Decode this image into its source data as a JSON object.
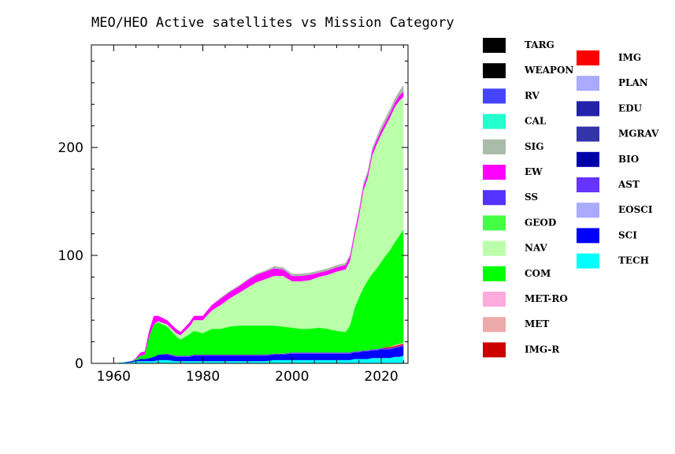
{
  "chart_data": {
    "type": "area",
    "title": "MEO/HEO Active satellites vs Mission Category",
    "xlabel": "",
    "ylabel": "",
    "xlim": [
      1955,
      2026
    ],
    "ylim": [
      0,
      295
    ],
    "x_ticks": [
      1960,
      1980,
      2000,
      2020
    ],
    "y_ticks": [
      0,
      100,
      200
    ],
    "stacked": true,
    "legend_placement": "right",
    "x": [
      1957,
      1960,
      1962,
      1964,
      1965,
      1966,
      1967,
      1968,
      1969,
      1970,
      1972,
      1974,
      1975,
      1977,
      1978,
      1980,
      1982,
      1984,
      1986,
      1988,
      1990,
      1992,
      1994,
      1996,
      1998,
      2000,
      2002,
      2004,
      2006,
      2008,
      2010,
      2012,
      2013,
      2014,
      2015,
      2016,
      2017,
      2018,
      2019,
      2020,
      2021,
      2022,
      2023,
      2024,
      2025
    ],
    "series": [
      {
        "name": "TECH",
        "color": "#00ffff",
        "values": [
          0,
          0,
          1,
          1,
          2,
          2,
          2,
          2,
          2,
          3,
          3,
          2,
          2,
          2,
          2,
          2,
          2,
          2,
          2,
          2,
          2,
          2,
          2,
          3,
          3,
          3,
          3,
          3,
          3,
          3,
          3,
          3,
          3,
          4,
          4,
          4,
          4,
          5,
          5,
          5,
          5,
          5,
          6,
          6,
          7
        ]
      },
      {
        "name": "SCI",
        "color": "#0000ff",
        "values": [
          0,
          0,
          0,
          1,
          1,
          2,
          2,
          3,
          4,
          5,
          5,
          4,
          4,
          4,
          5,
          5,
          5,
          5,
          5,
          5,
          5,
          5,
          5,
          5,
          5,
          6,
          6,
          6,
          6,
          6,
          6,
          6,
          6,
          6,
          6,
          7,
          7,
          7,
          7,
          8,
          8,
          8,
          8,
          9,
          9
        ]
      },
      {
        "name": "EOSCI",
        "color": "#aaaaff",
        "values": [
          0,
          0,
          0,
          0,
          0,
          0,
          0,
          0,
          0,
          0,
          0,
          0,
          0,
          0,
          0,
          0,
          0,
          0,
          0,
          0,
          0,
          0,
          0,
          0,
          0,
          0,
          0,
          0,
          0,
          0,
          0,
          0,
          0,
          0,
          0,
          0,
          0,
          0,
          0,
          0,
          0,
          0,
          0,
          0,
          0
        ]
      },
      {
        "name": "AST",
        "color": "#6633ff",
        "values": [
          0,
          0,
          0,
          0,
          0,
          0,
          0,
          0,
          0,
          0,
          1,
          1,
          1,
          1,
          1,
          1,
          1,
          1,
          1,
          1,
          1,
          1,
          1,
          1,
          1,
          1,
          1,
          1,
          1,
          1,
          1,
          1,
          1,
          1,
          1,
          1,
          1,
          1,
          1,
          1,
          1,
          1,
          1,
          1,
          1
        ]
      },
      {
        "name": "BIO",
        "color": "#0000aa",
        "values": [
          0,
          0,
          0,
          0,
          0,
          0,
          0,
          0,
          0,
          0,
          0,
          0,
          0,
          0,
          0,
          0,
          0,
          0,
          0,
          0,
          0,
          0,
          0,
          0,
          0,
          0,
          0,
          0,
          0,
          0,
          0,
          0,
          0,
          0,
          0,
          0,
          0,
          0,
          0,
          0,
          0,
          0,
          0,
          0,
          0
        ]
      },
      {
        "name": "MGRAV",
        "color": "#3333aa",
        "values": [
          0,
          0,
          0,
          0,
          0,
          0,
          0,
          0,
          0,
          0,
          0,
          0,
          0,
          0,
          0,
          0,
          0,
          0,
          0,
          0,
          0,
          0,
          0,
          0,
          0,
          0,
          0,
          0,
          0,
          0,
          0,
          0,
          0,
          0,
          0,
          0,
          0,
          0,
          0,
          0,
          0,
          0,
          0,
          0,
          0
        ]
      },
      {
        "name": "EDU",
        "color": "#2222aa",
        "values": [
          0,
          0,
          0,
          0,
          0,
          0,
          0,
          0,
          0,
          0,
          0,
          0,
          0,
          0,
          0,
          0,
          0,
          0,
          0,
          0,
          0,
          0,
          0,
          0,
          0,
          0,
          0,
          0,
          0,
          0,
          0,
          0,
          0,
          0,
          0,
          0,
          0,
          0,
          0,
          0,
          0,
          0,
          0,
          0,
          0
        ]
      },
      {
        "name": "PLAN",
        "color": "#aaaaff",
        "values": [
          0,
          0,
          0,
          0,
          0,
          0,
          0,
          0,
          0,
          0,
          0,
          0,
          0,
          0,
          0,
          0,
          0,
          0,
          0,
          0,
          0,
          0,
          0,
          0,
          0,
          0,
          0,
          0,
          0,
          0,
          0,
          0,
          0,
          0,
          0,
          0,
          0,
          0,
          0,
          0,
          0,
          0,
          0,
          0,
          0
        ]
      },
      {
        "name": "IMG",
        "color": "#ff0000",
        "values": [
          0,
          0,
          0,
          0,
          0,
          0,
          0,
          0,
          0,
          0,
          0,
          0,
          0,
          0,
          0,
          0,
          0,
          0,
          0,
          0,
          0,
          0,
          0,
          0,
          0,
          0,
          0,
          0,
          0,
          0,
          0,
          0,
          0,
          0,
          0,
          0,
          0,
          0,
          0,
          0,
          1,
          1,
          1,
          1,
          1
        ]
      },
      {
        "name": "IMG-R",
        "color": "#cc0000",
        "values": [
          0,
          0,
          0,
          0,
          0,
          0,
          0,
          0,
          0,
          0,
          0,
          0,
          0,
          0,
          0,
          0,
          0,
          0,
          0,
          0,
          0,
          0,
          0,
          0,
          0,
          0,
          0,
          0,
          0,
          0,
          0,
          0,
          0,
          0,
          0,
          0,
          0,
          0,
          0,
          0,
          0,
          0,
          0,
          0,
          0
        ]
      },
      {
        "name": "MET",
        "color": "#eeaaaa",
        "values": [
          0,
          0,
          0,
          0,
          0,
          0,
          0,
          0,
          0,
          0,
          0,
          0,
          0,
          0,
          0,
          0,
          0,
          0,
          0,
          0,
          0,
          0,
          0,
          0,
          0,
          0,
          0,
          0,
          0,
          0,
          0,
          0,
          0,
          0,
          0,
          0,
          0,
          0,
          0,
          0,
          0,
          0,
          1,
          1,
          1
        ]
      },
      {
        "name": "MET-RO",
        "color": "#ffaadd",
        "values": [
          0,
          0,
          0,
          0,
          0,
          0,
          0,
          0,
          0,
          0,
          0,
          0,
          0,
          0,
          0,
          0,
          0,
          0,
          0,
          0,
          0,
          0,
          0,
          0,
          0,
          0,
          0,
          0,
          0,
          0,
          0,
          0,
          0,
          0,
          0,
          0,
          0,
          0,
          0,
          0,
          0,
          0,
          0,
          0,
          0
        ]
      },
      {
        "name": "COM",
        "color": "#00ff00",
        "values": [
          0,
          0,
          0,
          0,
          1,
          3,
          4,
          20,
          30,
          30,
          25,
          18,
          15,
          20,
          22,
          20,
          24,
          24,
          26,
          27,
          27,
          27,
          27,
          26,
          25,
          23,
          22,
          22,
          23,
          22,
          20,
          19,
          25,
          40,
          50,
          58,
          65,
          70,
          75,
          80,
          85,
          90,
          95,
          100,
          105
        ]
      },
      {
        "name": "NAV",
        "color": "#bbffaa",
        "values": [
          0,
          0,
          0,
          0,
          0,
          0,
          0,
          0,
          0,
          1,
          2,
          3,
          4,
          7,
          10,
          12,
          17,
          22,
          26,
          30,
          35,
          40,
          43,
          46,
          47,
          43,
          44,
          45,
          47,
          50,
          55,
          58,
          60,
          66,
          75,
          90,
          95,
          110,
          115,
          118,
          120,
          123,
          125,
          125,
          123
        ]
      },
      {
        "name": "GEOD",
        "color": "#44ff44",
        "values": [
          0,
          0,
          0,
          0,
          0,
          0,
          0,
          0,
          0,
          0,
          0,
          0,
          0,
          0,
          0,
          0,
          0,
          0,
          0,
          0,
          0,
          0,
          0,
          0,
          0,
          0,
          0,
          0,
          0,
          0,
          0,
          0,
          0,
          0,
          0,
          0,
          0,
          0,
          0,
          0,
          0,
          0,
          0,
          0,
          0
        ]
      },
      {
        "name": "SS",
        "color": "#5533ff",
        "values": [
          0,
          0,
          0,
          0,
          0,
          0,
          0,
          0,
          0,
          0,
          0,
          0,
          0,
          0,
          0,
          0,
          0,
          0,
          0,
          0,
          0,
          0,
          0,
          0,
          0,
          0,
          0,
          0,
          0,
          0,
          0,
          0,
          0,
          0,
          0,
          0,
          0,
          0,
          0,
          0,
          0,
          0,
          0,
          0,
          0
        ]
      },
      {
        "name": "EW",
        "color": "#ff00ff",
        "values": [
          0,
          0,
          0,
          0,
          1,
          3,
          3,
          6,
          8,
          5,
          4,
          4,
          3,
          4,
          4,
          4,
          5,
          6,
          6,
          6,
          7,
          7,
          7,
          7,
          6,
          5,
          5,
          5,
          4,
          4,
          4,
          4,
          4,
          4,
          4,
          4,
          4,
          4,
          4,
          4,
          4,
          4,
          4,
          5,
          5
        ]
      },
      {
        "name": "SIG",
        "color": "#aabbaa",
        "values": [
          0,
          0,
          0,
          0,
          0,
          0,
          0,
          0,
          0,
          0,
          0,
          0,
          0,
          0,
          0,
          0,
          0,
          1,
          1,
          1,
          1,
          1,
          1,
          2,
          2,
          2,
          2,
          2,
          2,
          2,
          2,
          2,
          2,
          2,
          3,
          3,
          3,
          3,
          3,
          4,
          4,
          4,
          4,
          4,
          6
        ]
      },
      {
        "name": "CAL",
        "color": "#22ffcc",
        "values": [
          0,
          0,
          0,
          0,
          0,
          0,
          0,
          0,
          0,
          0,
          0,
          0,
          0,
          0,
          0,
          0,
          0,
          0,
          0,
          0,
          0,
          0,
          0,
          0,
          0,
          0,
          0,
          0,
          0,
          0,
          0,
          0,
          0,
          0,
          0,
          0,
          0,
          0,
          0,
          0,
          0,
          0,
          0,
          0,
          0
        ]
      },
      {
        "name": "RV",
        "color": "#4444ff",
        "values": [
          0,
          0,
          0,
          0,
          0,
          0,
          0,
          0,
          0,
          0,
          0,
          0,
          0,
          0,
          0,
          0,
          0,
          0,
          0,
          0,
          0,
          0,
          0,
          0,
          0,
          0,
          0,
          0,
          0,
          0,
          0,
          0,
          0,
          0,
          0,
          0,
          0,
          0,
          0,
          0,
          0,
          0,
          0,
          0,
          0
        ]
      },
      {
        "name": "WEAPON",
        "color": "#000000",
        "values": [
          0,
          0,
          0,
          0,
          0,
          0,
          0,
          0,
          0,
          0,
          0,
          0,
          0,
          0,
          0,
          0,
          0,
          0,
          0,
          0,
          0,
          0,
          0,
          0,
          0,
          0,
          0,
          0,
          0,
          0,
          0,
          0,
          0,
          0,
          0,
          0,
          0,
          0,
          0,
          0,
          0,
          0,
          0,
          0,
          0
        ]
      },
      {
        "name": "TARG",
        "color": "#000000",
        "values": [
          0,
          0,
          0,
          0,
          0,
          0,
          0,
          0,
          0,
          0,
          0,
          0,
          0,
          0,
          0,
          0,
          0,
          0,
          0,
          0,
          0,
          0,
          0,
          0,
          0,
          0,
          0,
          0,
          0,
          0,
          0,
          0,
          0,
          0,
          0,
          0,
          0,
          0,
          0,
          0,
          0,
          0,
          0,
          0,
          0
        ]
      }
    ],
    "legend_col1": [
      "TARG",
      "WEAPON",
      "RV",
      "CAL",
      "SIG",
      "EW",
      "SS",
      "GEOD",
      "NAV",
      "COM",
      "MET-RO",
      "MET",
      "IMG-R"
    ],
    "legend_col2": [
      "IMG",
      "PLAN",
      "EDU",
      "MGRAV",
      "BIO",
      "AST",
      "EOSCI",
      "SCI",
      "TECH"
    ]
  }
}
